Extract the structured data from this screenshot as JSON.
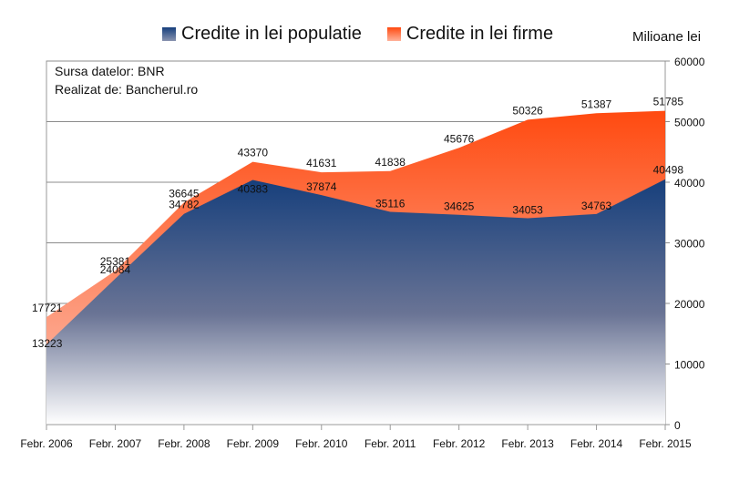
{
  "chart_data": {
    "type": "area",
    "categories": [
      "Febr. 2006",
      "Febr. 2007",
      "Febr. 2008",
      "Febr. 2009",
      "Febr. 2010",
      "Febr. 2011",
      "Febr. 2012",
      "Febr. 2013",
      "Febr. 2014",
      "Febr. 2015"
    ],
    "series": [
      {
        "name": "Credite in lei populatie",
        "values": [
          13223,
          24084,
          34782,
          40383,
          37874,
          35116,
          34625,
          34053,
          34763,
          40498
        ],
        "color": "#1e4a86"
      },
      {
        "name": "Credite in lei firme",
        "values": [
          17721,
          25381,
          36645,
          43370,
          41631,
          41838,
          45676,
          50326,
          51387,
          51785
        ],
        "color": "#ff5a1f"
      }
    ],
    "ylabel": "Milioane lei",
    "ylim": [
      0,
      60000
    ],
    "yticks": [
      0,
      10000,
      20000,
      30000,
      40000,
      50000,
      60000
    ],
    "grid": true,
    "legend": "top",
    "annotations": [
      "Sursa datelor: BNR",
      "Realizat de: Bancherul.ro"
    ]
  }
}
